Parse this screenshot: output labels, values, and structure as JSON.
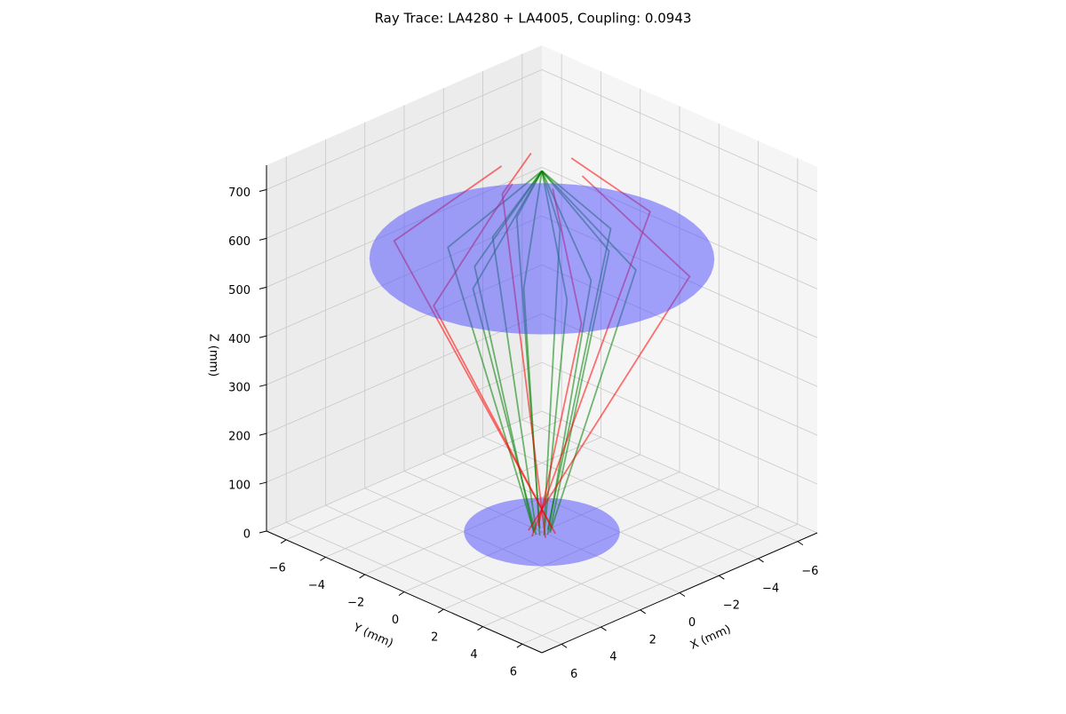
{
  "chart_data": {
    "type": "ray3d",
    "title": "Ray Trace: LA4280 + LA4005, Coupling: 0.0943",
    "xlabel": "X (mm)",
    "ylabel": "Y (mm)",
    "zlabel": "Z (mm)",
    "xlim": [
      -7,
      7
    ],
    "ylim": [
      -7,
      7
    ],
    "zlim": [
      0,
      750
    ],
    "xticks": [
      {
        "value": -6,
        "label": "−6"
      },
      {
        "value": -4,
        "label": "−4"
      },
      {
        "value": -2,
        "label": "−2"
      },
      0,
      2,
      4,
      6
    ],
    "yticks": [
      {
        "value": -6,
        "label": "−6"
      },
      {
        "value": -4,
        "label": "−4"
      },
      {
        "value": -2,
        "label": "−2"
      },
      0,
      2,
      4,
      6
    ],
    "zticks": [
      0,
      100,
      200,
      300,
      400,
      500,
      600,
      700
    ],
    "grid": true,
    "lenses": [
      {
        "z": 0,
        "radius": 2.8,
        "color": "#4a4aff"
      },
      {
        "z": 560,
        "radius": 6.2,
        "color": "#4a4aff"
      }
    ],
    "rays": [
      {
        "color": "#008000",
        "x": [
          0.3,
          3.5,
          0
        ],
        "y": [
          0,
          0,
          0
        ],
        "z": [
          0,
          560,
          740
        ]
      },
      {
        "color": "#008000",
        "x": [
          0.26,
          2.17,
          0
        ],
        "y": [
          0.15,
          1.25,
          0
        ],
        "z": [
          0,
          560,
          740
        ]
      },
      {
        "color": "#008000",
        "x": [
          0.15,
          1.75,
          0
        ],
        "y": [
          0.26,
          3.03,
          0
        ],
        "z": [
          0,
          560,
          740
        ]
      },
      {
        "color": "#008000",
        "x": [
          0,
          0,
          0
        ],
        "y": [
          0.3,
          2.5,
          0
        ],
        "z": [
          0,
          560,
          740
        ]
      },
      {
        "color": "#008000",
        "x": [
          -0.15,
          -1.75,
          0
        ],
        "y": [
          0.26,
          3.03,
          0
        ],
        "z": [
          0,
          560,
          740
        ]
      },
      {
        "color": "#008000",
        "x": [
          -0.26,
          -2.17,
          0
        ],
        "y": [
          0.15,
          1.25,
          0
        ],
        "z": [
          0,
          560,
          740
        ]
      },
      {
        "color": "#008000",
        "x": [
          -0.3,
          -3.5,
          0
        ],
        "y": [
          0,
          0,
          0
        ],
        "z": [
          0,
          560,
          740
        ]
      },
      {
        "color": "#008000",
        "x": [
          -0.26,
          -2.17,
          0
        ],
        "y": [
          -0.15,
          -1.25,
          0
        ],
        "z": [
          0,
          560,
          740
        ]
      },
      {
        "color": "#008000",
        "x": [
          -0.15,
          -1.75,
          0
        ],
        "y": [
          -0.26,
          -3.03,
          0
        ],
        "z": [
          0,
          560,
          740
        ]
      },
      {
        "color": "#008000",
        "x": [
          0,
          0,
          0
        ],
        "y": [
          -0.3,
          -2.5,
          0
        ],
        "z": [
          0,
          560,
          740
        ]
      },
      {
        "color": "#008000",
        "x": [
          0.15,
          1.75,
          0
        ],
        "y": [
          -0.26,
          -3.03,
          0
        ],
        "z": [
          0,
          560,
          740
        ]
      },
      {
        "color": "#008000",
        "x": [
          0.26,
          2.17,
          0
        ],
        "y": [
          -0.15,
          -1.25,
          0
        ],
        "z": [
          0,
          560,
          740
        ]
      },
      {
        "color": "#ff0000",
        "x": [
          0.5,
          -5.5,
          -1.5
        ],
        "y": [
          0,
          0,
          0
        ],
        "z": [
          0,
          560,
          740
        ]
      },
      {
        "color": "#ff0000",
        "x": [
          0.25,
          -2.75,
          -0.75
        ],
        "y": [
          0.43,
          -4.76,
          -1.3
        ],
        "z": [
          0,
          560,
          740
        ]
      },
      {
        "color": "#ff0000",
        "x": [
          -0.25,
          2.75,
          0.75
        ],
        "y": [
          0.43,
          -4.76,
          -1.3
        ],
        "z": [
          0,
          560,
          740
        ]
      },
      {
        "color": "#ff0000",
        "x": [
          -0.5,
          5.5,
          1.5
        ],
        "y": [
          0,
          0,
          0
        ],
        "z": [
          0,
          560,
          740
        ]
      },
      {
        "color": "#ff0000",
        "x": [
          -0.25,
          2.75,
          0.75
        ],
        "y": [
          -0.43,
          4.76,
          1.3
        ],
        "z": [
          0,
          560,
          740
        ]
      },
      {
        "color": "#ff0000",
        "x": [
          0.25,
          -2.75,
          -0.75
        ],
        "y": [
          -0.43,
          4.76,
          1.3
        ],
        "z": [
          0,
          560,
          740
        ]
      }
    ]
  }
}
